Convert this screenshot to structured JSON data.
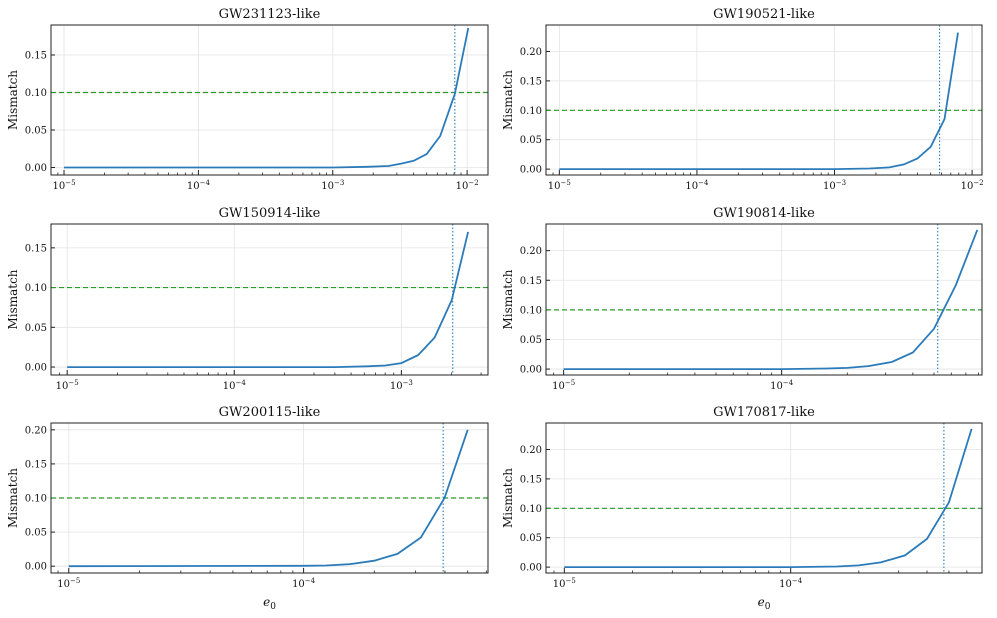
{
  "chart_data": [
    {
      "type": "line",
      "title": "GW231123-like",
      "xscale": "log",
      "xlim": [
        8e-06,
        0.0143
      ],
      "ylim": [
        -0.01,
        0.19
      ],
      "xticks": [
        {
          "value": 1e-05,
          "base": "10",
          "exp": "−5"
        },
        {
          "value": 0.0001,
          "base": "10",
          "exp": "−4"
        },
        {
          "value": 0.001,
          "base": "10",
          "exp": "−3"
        },
        {
          "value": 0.01,
          "base": "10",
          "exp": "−2"
        }
      ],
      "yticks": [
        0.0,
        0.05,
        0.1,
        0.15
      ],
      "ytick_labels": [
        "0.00",
        "0.05",
        "0.10",
        "0.15"
      ],
      "xlabel": "",
      "ylabel": "Mismatch",
      "threshold": 0.1,
      "vline_x": 0.0081,
      "series": [
        {
          "name": "mismatch",
          "x": [
            1e-05,
            0.0001,
            0.001,
            0.0018,
            0.0026,
            0.0032,
            0.004,
            0.005,
            0.0063,
            0.0081,
            0.0102
          ],
          "y": [
            0,
            0,
            0,
            0.001,
            0.002,
            0.005,
            0.009,
            0.018,
            0.042,
            0.098,
            0.186
          ]
        }
      ]
    },
    {
      "type": "line",
      "title": "GW190521-like",
      "xscale": "log",
      "xlim": [
        8e-06,
        0.0118
      ],
      "ylim": [
        -0.01,
        0.245
      ],
      "xticks": [
        {
          "value": 1e-05,
          "base": "10",
          "exp": "−5"
        },
        {
          "value": 0.0001,
          "base": "10",
          "exp": "−4"
        },
        {
          "value": 0.001,
          "base": "10",
          "exp": "−3"
        },
        {
          "value": 0.01,
          "base": "10",
          "exp": "−2"
        }
      ],
      "yticks": [
        0.0,
        0.05,
        0.1,
        0.15,
        0.2
      ],
      "ytick_labels": [
        "0.00",
        "0.05",
        "0.10",
        "0.15",
        "0.20"
      ],
      "xlabel": "",
      "ylabel": "Mismatch",
      "threshold": 0.1,
      "vline_x": 0.0058,
      "series": [
        {
          "name": "mismatch",
          "x": [
            1e-05,
            0.0001,
            0.001,
            0.0018,
            0.0025,
            0.0032,
            0.004,
            0.005,
            0.0063,
            0.0079
          ],
          "y": [
            0,
            0,
            0,
            0.001,
            0.003,
            0.008,
            0.018,
            0.038,
            0.085,
            0.232
          ]
        }
      ]
    },
    {
      "type": "line",
      "title": "GW150914-like",
      "xscale": "log",
      "xlim": [
        8e-06,
        0.0033
      ],
      "ylim": [
        -0.01,
        0.18
      ],
      "xticks": [
        {
          "value": 1e-05,
          "base": "10",
          "exp": "−5"
        },
        {
          "value": 0.0001,
          "base": "10",
          "exp": "−4"
        },
        {
          "value": 0.001,
          "base": "10",
          "exp": "−3"
        }
      ],
      "yticks": [
        0.0,
        0.05,
        0.1,
        0.15
      ],
      "ytick_labels": [
        "0.00",
        "0.05",
        "0.10",
        "0.15"
      ],
      "xlabel": "",
      "ylabel": "Mismatch",
      "threshold": 0.1,
      "vline_x": 0.00203,
      "series": [
        {
          "name": "mismatch",
          "x": [
            1e-05,
            0.0001,
            0.0004,
            0.00063,
            0.0008,
            0.001,
            0.00126,
            0.00158,
            0.002,
            0.00251
          ],
          "y": [
            0,
            0,
            0,
            0.001,
            0.002,
            0.005,
            0.015,
            0.037,
            0.084,
            0.17
          ]
        }
      ]
    },
    {
      "type": "line",
      "title": "GW190814-like",
      "xscale": "log",
      "xlim": [
        8.3e-06,
        0.00083
      ],
      "ylim": [
        -0.01,
        0.245
      ],
      "xticks": [
        {
          "value": 1e-05,
          "base": "10",
          "exp": "−5"
        },
        {
          "value": 0.0001,
          "base": "10",
          "exp": "−4"
        }
      ],
      "yticks": [
        0.0,
        0.05,
        0.1,
        0.15,
        0.2
      ],
      "ytick_labels": [
        "0.00",
        "0.05",
        "0.10",
        "0.15",
        "0.20"
      ],
      "xlabel": "",
      "ylabel": "Mismatch",
      "threshold": 0.1,
      "vline_x": 0.00052,
      "series": [
        {
          "name": "mismatch",
          "x": [
            1e-05,
            0.0001,
            0.00016,
            0.0002,
            0.00025,
            0.00032,
            0.0004,
            0.0005,
            0.00063,
            0.00079
          ],
          "y": [
            0,
            0,
            0.001,
            0.002,
            0.005,
            0.012,
            0.028,
            0.068,
            0.142,
            0.235
          ]
        }
      ]
    },
    {
      "type": "line",
      "title": "GW200115-like",
      "xscale": "log",
      "xlim": [
        8.4e-06,
        0.00061
      ],
      "ylim": [
        -0.01,
        0.21
      ],
      "xticks": [
        {
          "value": 1e-05,
          "base": "10",
          "exp": "−5"
        },
        {
          "value": 0.0001,
          "base": "10",
          "exp": "−4"
        }
      ],
      "yticks": [
        0.0,
        0.05,
        0.1,
        0.15,
        0.2
      ],
      "ytick_labels": [
        "0.00",
        "0.05",
        "0.10",
        "0.15",
        "0.20"
      ],
      "xlabel": "e0",
      "ylabel": "Mismatch",
      "threshold": 0.1,
      "vline_x": 0.000393,
      "series": [
        {
          "name": "mismatch",
          "x": [
            1e-05,
            0.0001,
            0.000125,
            0.000158,
            0.0002,
            0.000251,
            0.000316,
            0.000398,
            0.0005
          ],
          "y": [
            0,
            0.0005,
            0.001,
            0.003,
            0.008,
            0.018,
            0.042,
            0.1,
            0.2
          ]
        }
      ]
    },
    {
      "type": "line",
      "title": "GW170817-like",
      "xscale": "log",
      "xlim": [
        8.3e-06,
        0.0007
      ],
      "ylim": [
        -0.01,
        0.245
      ],
      "xticks": [
        {
          "value": 1e-05,
          "base": "10",
          "exp": "−5"
        },
        {
          "value": 0.0001,
          "base": "10",
          "exp": "−4"
        }
      ],
      "yticks": [
        0.0,
        0.05,
        0.1,
        0.15,
        0.2
      ],
      "ytick_labels": [
        "0.00",
        "0.05",
        "0.10",
        "0.15",
        "0.20"
      ],
      "xlabel": "e0",
      "ylabel": "Mismatch",
      "threshold": 0.1,
      "vline_x": 0.000475,
      "series": [
        {
          "name": "mismatch",
          "x": [
            1e-05,
            0.0001,
            0.00016,
            0.0002,
            0.00025,
            0.00032,
            0.0004,
            0.0005,
            0.00063
          ],
          "y": [
            0,
            0,
            0.001,
            0.003,
            0.008,
            0.02,
            0.048,
            0.11,
            0.235
          ]
        }
      ]
    }
  ],
  "colors": {
    "series": "#2b7bba",
    "threshold": "#2a9a2a",
    "vline": "#2b7bba",
    "grid": "#e3e3e3",
    "axis": "#222222"
  }
}
